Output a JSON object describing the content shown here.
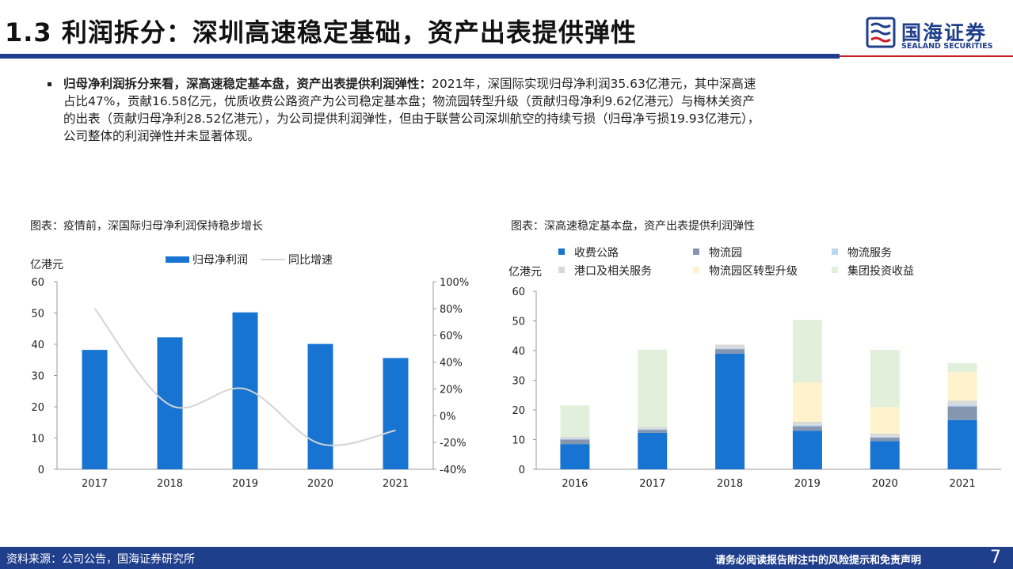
{
  "header": {
    "title": "1.3 利润拆分：深圳高速稳定基础，资产出表提供弹性",
    "logo_cn": "国海证券",
    "logo_en": "SEALAND SECURITIES"
  },
  "bullet": {
    "bold": "归母净利润拆分来看，深高速稳定基本盘，资产出表提供利润弹性：",
    "line1": "2021年，深国际实现归母净利润35.63亿港元，其中深高速",
    "line2": "占比47%，贡献16.58亿元，优质收费公路资产为公司稳定基本盘；物流园转型升级（贡献归母净利9.62亿港元）与梅林关资产",
    "line3": "的出表（贡献归母净利28.52亿港元），为公司提供利润弹性，但由于联营公司深圳航空的持续亏损（归母净亏损19.93亿港元），",
    "line4": "公司整体的利润弹性并未显著体现。"
  },
  "figure_left": {
    "title": "图表：疫情前，深国际归母净利润保持稳步增长"
  },
  "figure_right": {
    "title": "图表：深高速稳定基本盘，资产出表提供利润弹性"
  },
  "footer": {
    "source": "资料来源：公司公告，国海证券研究所",
    "disclaimer": "请务必阅读报告附注中的风险提示和免责声明",
    "page": "7"
  },
  "colors": {
    "brand_blue": "#1f3e8c",
    "brand_red": "#c81e28",
    "bar_blue": "#1874d2",
    "line_grey": "#d4d4d4"
  },
  "chart_data": [
    {
      "type": "bar",
      "categories": [
        "2017",
        "2018",
        "2019",
        "2020",
        "2021"
      ],
      "series": [
        {
          "name": "归母净利润",
          "type": "bar",
          "axis": "left",
          "color": "#1874d2",
          "values": [
            38.2,
            42.2,
            50.2,
            40.1,
            35.6
          ]
        },
        {
          "name": "同比增速",
          "type": "line",
          "axis": "right",
          "color": "#d4d4d4",
          "values": [
            80,
            8,
            20,
            -21,
            -11
          ]
        }
      ],
      "ylabel": "亿港元",
      "ylim": [
        0,
        60
      ],
      "yticks": [
        "0",
        "10",
        "20",
        "30",
        "40",
        "50",
        "60"
      ],
      "y2lim": [
        -40,
        100
      ],
      "y2ticks": [
        "-40%",
        "-20%",
        "0%",
        "20%",
        "40%",
        "60%",
        "80%",
        "100%"
      ],
      "legend": "top",
      "grid": false
    },
    {
      "type": "bar",
      "stacked": true,
      "categories": [
        "2016",
        "2017",
        "2018",
        "2019",
        "2020",
        "2021"
      ],
      "series": [
        {
          "name": "收费公路",
          "color": "#1874d2",
          "values": [
            8.5,
            12.3,
            39.0,
            13.0,
            9.5,
            16.58
          ]
        },
        {
          "name": "物流园",
          "color": "#8496b0",
          "values": [
            1.5,
            1.0,
            1.5,
            1.5,
            1.2,
            4.6
          ]
        },
        {
          "name": "物流服务",
          "color": "#bdd7ee",
          "values": [
            0.3,
            0.3,
            0.3,
            0.5,
            0.3,
            0.5
          ]
        },
        {
          "name": "港口及相关服务",
          "color": "#d9d9d9",
          "values": [
            0.7,
            0.7,
            1.2,
            1.0,
            1.0,
            1.5
          ]
        },
        {
          "name": "物流园区转型升级",
          "color": "#fff2cc",
          "values": [
            0,
            0,
            0,
            13.2,
            9.0,
            9.62
          ]
        },
        {
          "name": "集团投资收益",
          "color": "#e2efda",
          "values": [
            10.5,
            26.0,
            0,
            21.1,
            19.2,
            3.0
          ]
        }
      ],
      "ylabel": "亿港元",
      "ylim": [
        0,
        60
      ],
      "yticks": [
        "0",
        "10",
        "20",
        "30",
        "40",
        "50",
        "60"
      ],
      "legend": "top",
      "grid": false
    }
  ]
}
